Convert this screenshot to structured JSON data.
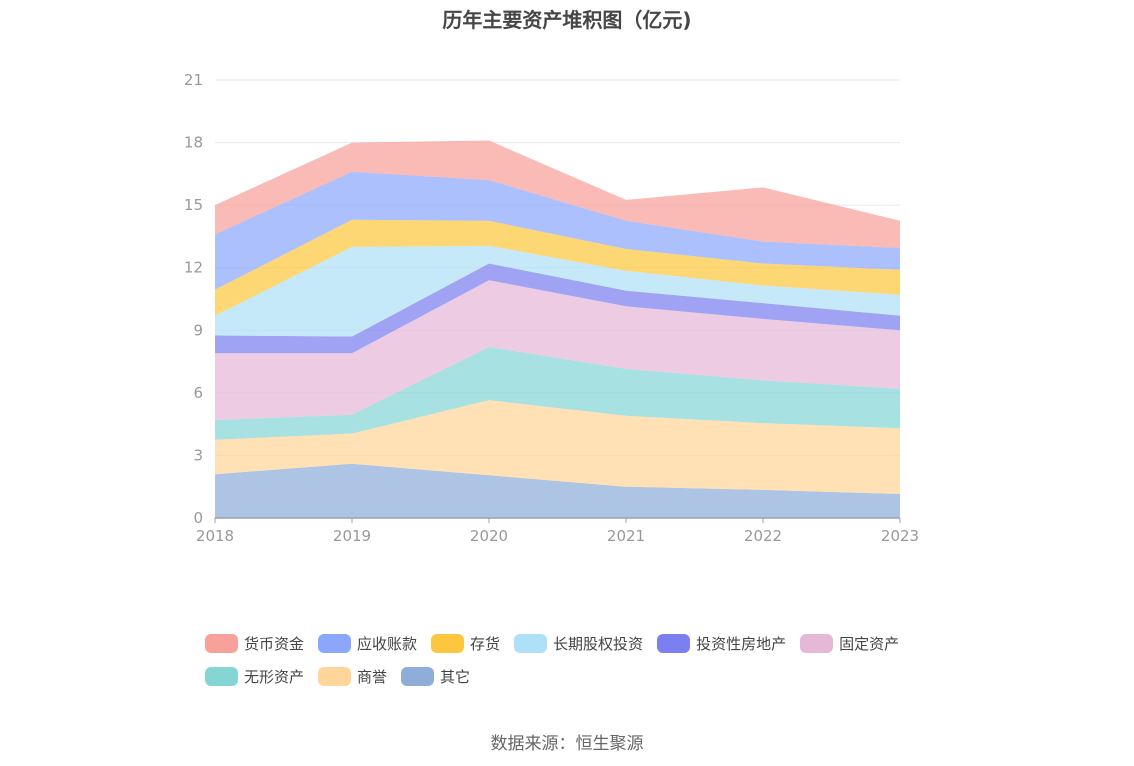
{
  "chart_data": {
    "type": "area",
    "stacked": true,
    "title": "历年主要资产堆积图（亿元)",
    "categories": [
      "2018",
      "2019",
      "2020",
      "2021",
      "2022",
      "2023"
    ],
    "ylim": [
      0,
      21
    ],
    "yticks": [
      "0",
      "3",
      "6",
      "9",
      "12",
      "15",
      "18",
      "21"
    ],
    "grid": true,
    "legend_position": "bottom",
    "series": [
      {
        "name": "其它",
        "color": "#8fadd9",
        "values": [
          2.1,
          2.6,
          2.05,
          1.5,
          1.35,
          1.15
        ]
      },
      {
        "name": "商誉",
        "color": "#ffd699",
        "values": [
          1.65,
          1.45,
          3.6,
          3.4,
          3.2,
          3.15
        ]
      },
      {
        "name": "无形资产",
        "color": "#85d5d5",
        "values": [
          0.95,
          0.9,
          2.55,
          2.25,
          2.05,
          1.9
        ]
      },
      {
        "name": "固定资产",
        "color": "#e6b8d8",
        "values": [
          3.2,
          2.95,
          3.2,
          3.0,
          2.95,
          2.8
        ]
      },
      {
        "name": "投资性房地产",
        "color": "#7b7ff0",
        "values": [
          0.85,
          0.8,
          0.8,
          0.75,
          0.75,
          0.7
        ]
      },
      {
        "name": "长期股权投资",
        "color": "#aee0f7",
        "values": [
          0.95,
          4.3,
          0.85,
          0.95,
          0.85,
          1.0
        ]
      },
      {
        "name": "存货",
        "color": "#fcc73f",
        "values": [
          1.25,
          1.3,
          1.2,
          1.05,
          1.05,
          1.2
        ]
      },
      {
        "name": "应收账款",
        "color": "#8ba7fb",
        "values": [
          2.65,
          2.3,
          1.95,
          1.35,
          1.05,
          1.05
        ]
      },
      {
        "name": "货币资金",
        "color": "#f8a09a",
        "values": [
          1.4,
          1.4,
          1.9,
          1.0,
          2.6,
          1.3
        ]
      }
    ]
  },
  "legend": {
    "rows": [
      [
        {
          "label": "货币资金",
          "color": "#f8a09a"
        },
        {
          "label": "应收账款",
          "color": "#8ba7fb"
        },
        {
          "label": "存货",
          "color": "#fcc73f"
        },
        {
          "label": "长期股权投资",
          "color": "#aee0f7"
        },
        {
          "label": "投资性房地产",
          "color": "#7b7ff0"
        },
        {
          "label": "固定资产",
          "color": "#e6b8d8"
        }
      ],
      [
        {
          "label": "无形资产",
          "color": "#85d5d5"
        },
        {
          "label": "商誉",
          "color": "#ffd699"
        },
        {
          "label": "其它",
          "color": "#8fadd9"
        }
      ]
    ]
  },
  "source": "数据来源：恒生聚源"
}
